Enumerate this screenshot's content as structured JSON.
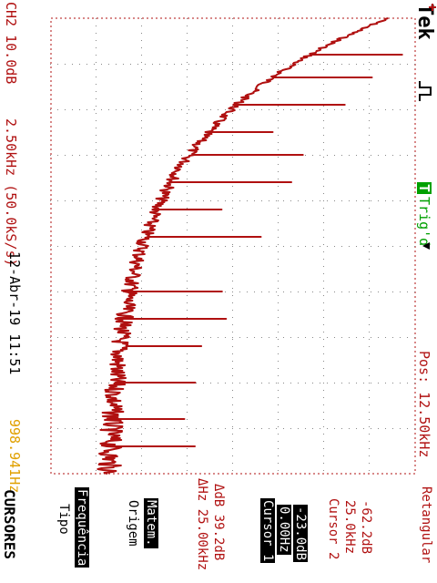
{
  "header": {
    "brand": "Tek",
    "trigger_status": "Trig'd",
    "trigger_badge": "T",
    "position": "Pos: 12.50kHz"
  },
  "footer": {
    "channel_scale": "CH2 10.0dB",
    "span": "2.50kHz (50.0kS/s)",
    "datetime": "12-Abr-19 11:51",
    "frequency": "998.941Hz"
  },
  "menu": {
    "title": "CURSORES",
    "tipo_label": "Tipo",
    "tipo_value": "Frequência",
    "origem_label": "Origem",
    "origem_value": "Matem.",
    "delta_hz": "ΔHz 25.00kHz",
    "delta_db": "ΔdB 39.2dB",
    "cursor1_label": "Cursor 1",
    "cursor1_freq": "0.00Hz",
    "cursor1_db": "-23.0dB",
    "cursor2_label": "Cursor 2",
    "cursor2_freq": "25.0kHz",
    "cursor2_db": "-62.2dB",
    "window": "Retangular"
  },
  "colors": {
    "trace": "#b01010",
    "frequency_readout": "#e0a000",
    "trigger_badge": "#00a000"
  }
}
